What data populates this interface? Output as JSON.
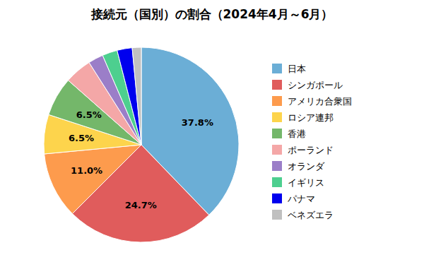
{
  "chart_data": {
    "type": "pie",
    "title": "接続元（国別）の割合（2024年4月～6月）",
    "categories": [
      "日本",
      "シンガポール",
      "アメリカ合衆国",
      "ロシア連邦",
      "香港",
      "ポーランド",
      "オランダ",
      "イギリス",
      "パナマ",
      "ベネズエラ"
    ],
    "values": [
      37.8,
      24.7,
      11.0,
      6.5,
      6.5,
      4.5,
      2.5,
      2.5,
      2.5,
      1.5
    ],
    "value_labels": [
      "37.8%",
      "24.7%",
      "11.0%",
      "6.5%",
      "6.5%",
      null,
      null,
      null,
      null,
      null
    ],
    "colors": [
      "#6baed6",
      "#e05c5c",
      "#fd9b4d",
      "#fdd44c",
      "#74b76a",
      "#f4a7a7",
      "#9b7ec8",
      "#4dcf8f",
      "#0000ee",
      "#c0c0c0"
    ],
    "data_labels": true,
    "legend": "right"
  }
}
